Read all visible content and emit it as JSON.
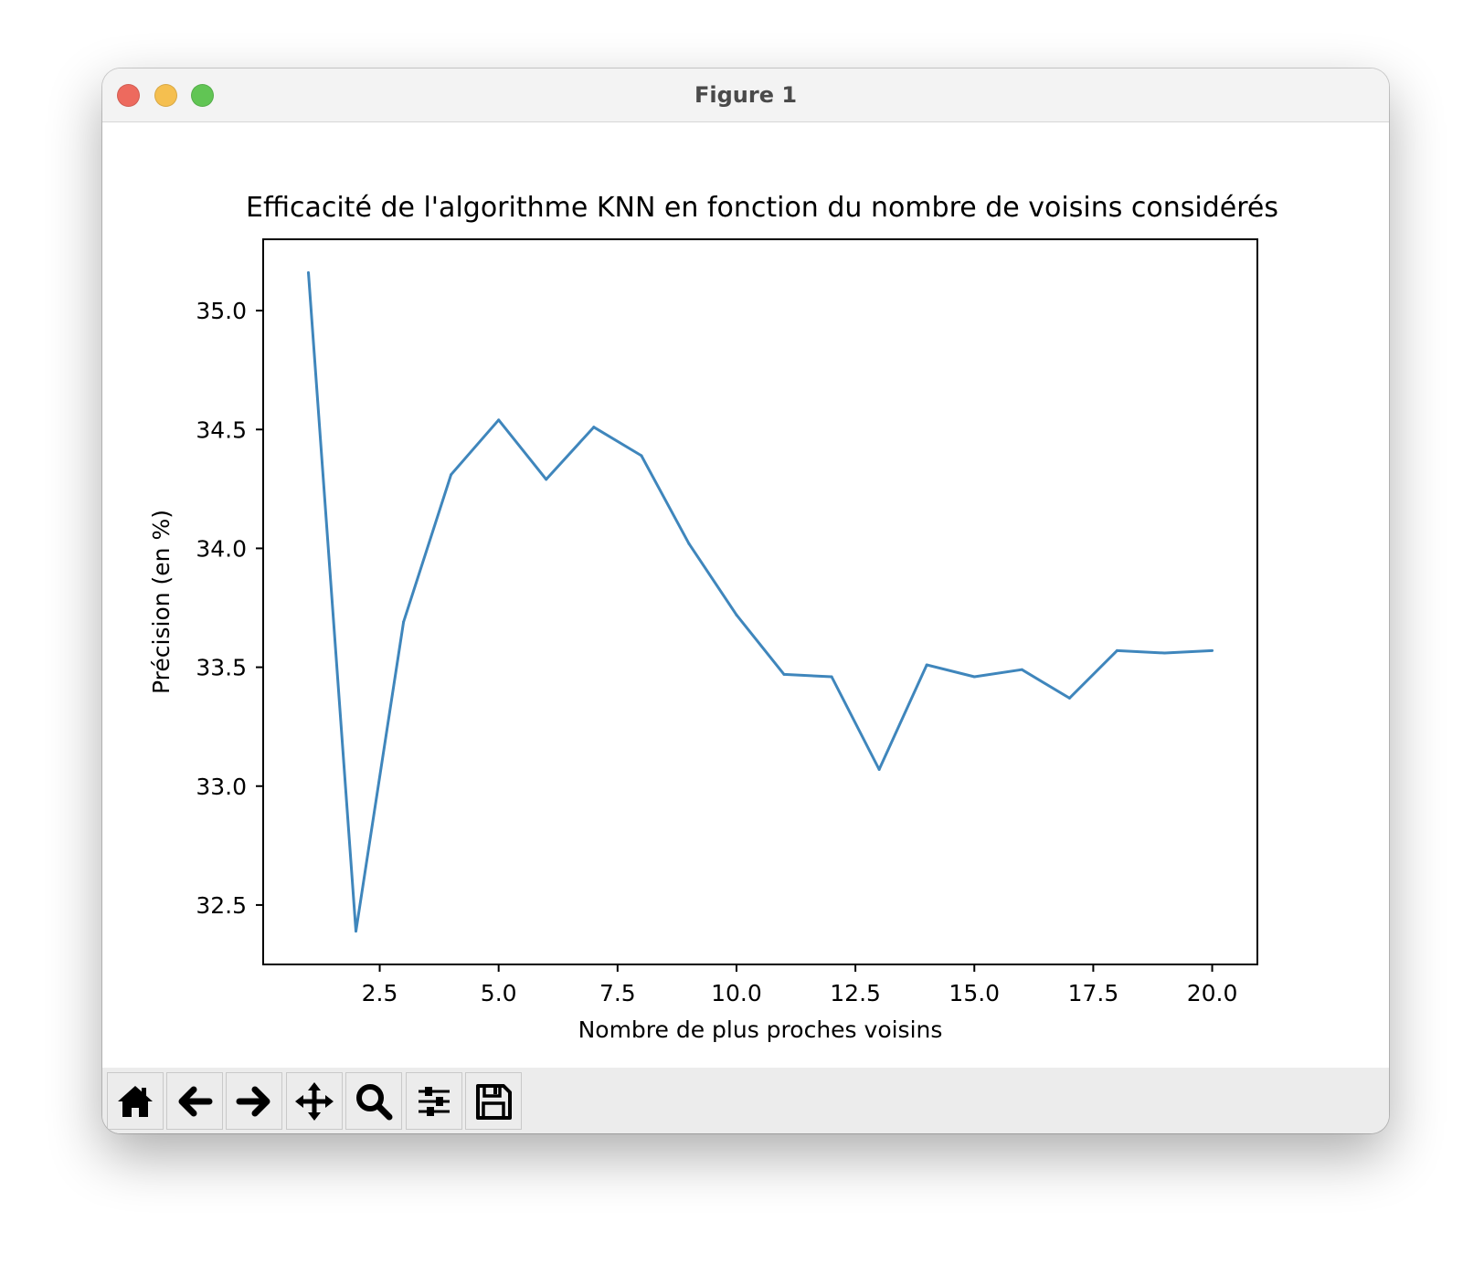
{
  "window": {
    "title": "Figure 1"
  },
  "toolbar": {
    "buttons": [
      {
        "icon": "home-icon"
      },
      {
        "icon": "back-arrow-icon"
      },
      {
        "icon": "forward-arrow-icon"
      },
      {
        "icon": "pan-move-icon"
      },
      {
        "icon": "zoom-magnifier-icon"
      },
      {
        "icon": "subplots-sliders-icon"
      },
      {
        "icon": "save-floppy-icon"
      }
    ]
  },
  "chart_data": {
    "type": "line",
    "title": "Efficacité de l'algorithme KNN en fonction du nombre de voisins considérés",
    "xlabel": "Nombre de plus proches voisins",
    "ylabel": "Précision (en %)",
    "xlim": [
      0.05,
      20.95
    ],
    "ylim": [
      32.25,
      35.3
    ],
    "xticks": [
      2.5,
      5.0,
      7.5,
      10.0,
      12.5,
      15.0,
      17.5,
      20.0
    ],
    "xtick_labels": [
      "2.5",
      "5.0",
      "7.5",
      "10.0",
      "12.5",
      "15.0",
      "17.5",
      "20.0"
    ],
    "yticks": [
      32.5,
      33.0,
      33.5,
      34.0,
      34.5,
      35.0
    ],
    "ytick_labels": [
      "32.5",
      "33.0",
      "33.5",
      "34.0",
      "34.5",
      "35.0"
    ],
    "grid": false,
    "color": "#3f86bc",
    "x": [
      1,
      2,
      3,
      4,
      5,
      6,
      7,
      8,
      9,
      10,
      11,
      12,
      13,
      14,
      15,
      16,
      17,
      18,
      19,
      20
    ],
    "y": [
      35.16,
      32.39,
      33.69,
      34.31,
      34.54,
      34.29,
      34.51,
      34.39,
      34.02,
      33.72,
      33.47,
      33.46,
      33.07,
      33.51,
      33.46,
      33.49,
      33.37,
      33.57,
      33.56,
      33.57
    ]
  }
}
